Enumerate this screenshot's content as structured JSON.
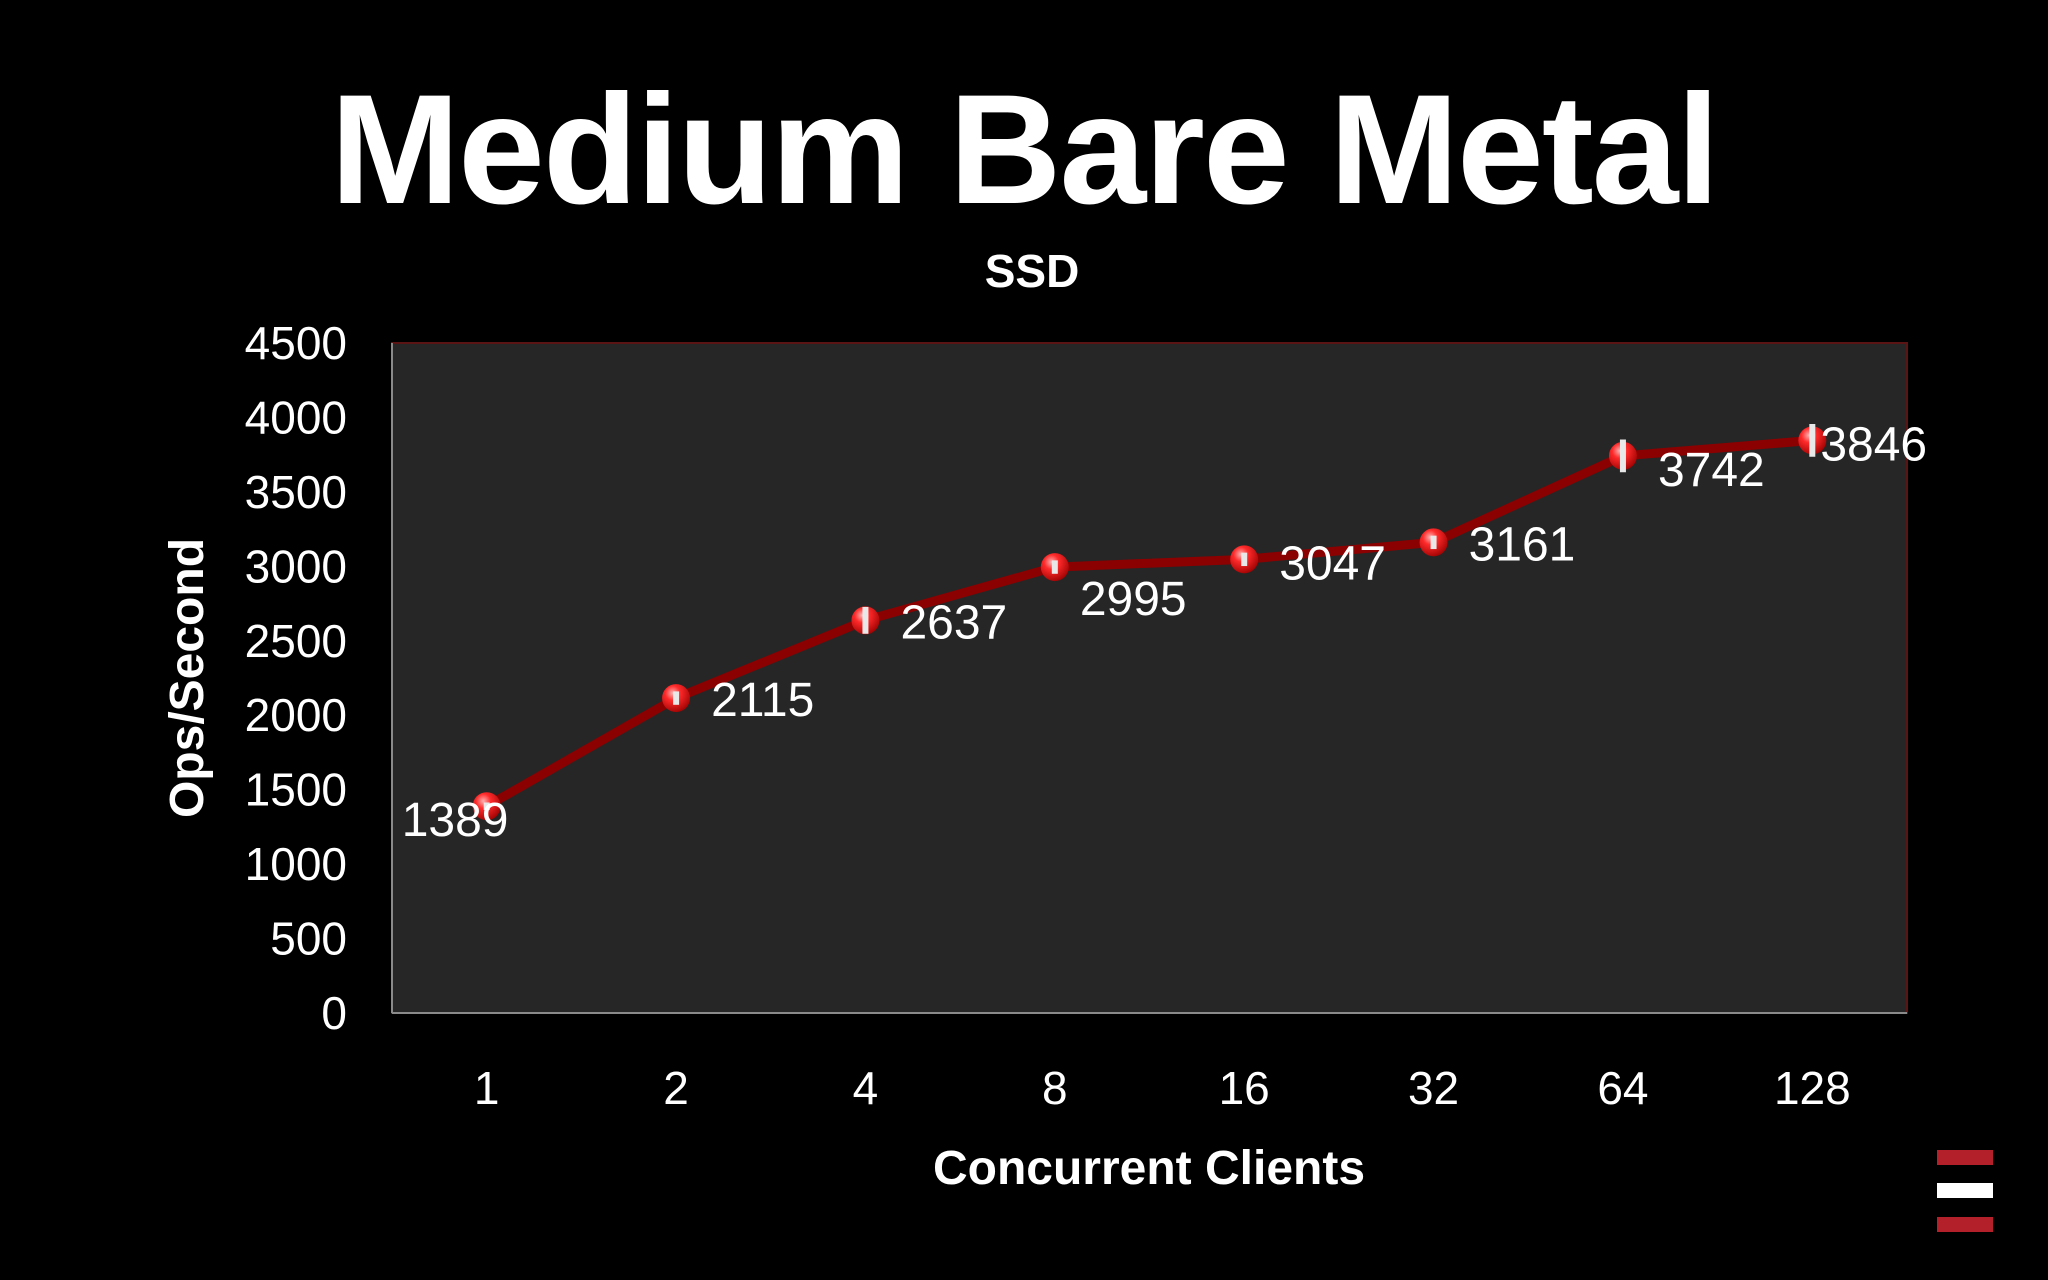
{
  "slide": {
    "title": "Medium Bare Metal"
  },
  "colors": {
    "background": "#000000",
    "plot_area": "#262626",
    "plot_border": "#5a1414",
    "line": "#8b0000",
    "marker": "#e0131b",
    "error_bar": "#e8e8e8",
    "text": "#ffffff",
    "logo_red": "#b3202a",
    "logo_white": "#ffffff"
  },
  "chart_data": {
    "type": "line",
    "title": "SSD",
    "xlabel": "Concurrent Clients",
    "ylabel": "Ops/Second",
    "categories": [
      "1",
      "2",
      "4",
      "8",
      "16",
      "32",
      "64",
      "128"
    ],
    "series": [
      {
        "values": [
          1389,
          2115,
          2637,
          2995,
          3047,
          3161,
          3742,
          3846
        ],
        "error": [
          25,
          45,
          90,
          45,
          45,
          45,
          110,
          110
        ]
      }
    ],
    "data_labels": [
      "1389",
      "2115",
      "2637",
      "2995",
      "3047",
      "3161",
      "3742",
      "3846"
    ],
    "ylim": [
      0,
      4500
    ],
    "yticks": [
      "0",
      "500",
      "1000",
      "1500",
      "2000",
      "2500",
      "3000",
      "3500",
      "4000",
      "4500"
    ],
    "grid": false,
    "legend": "none"
  },
  "logo": {
    "icon": "stacked-bars-logo-icon"
  }
}
